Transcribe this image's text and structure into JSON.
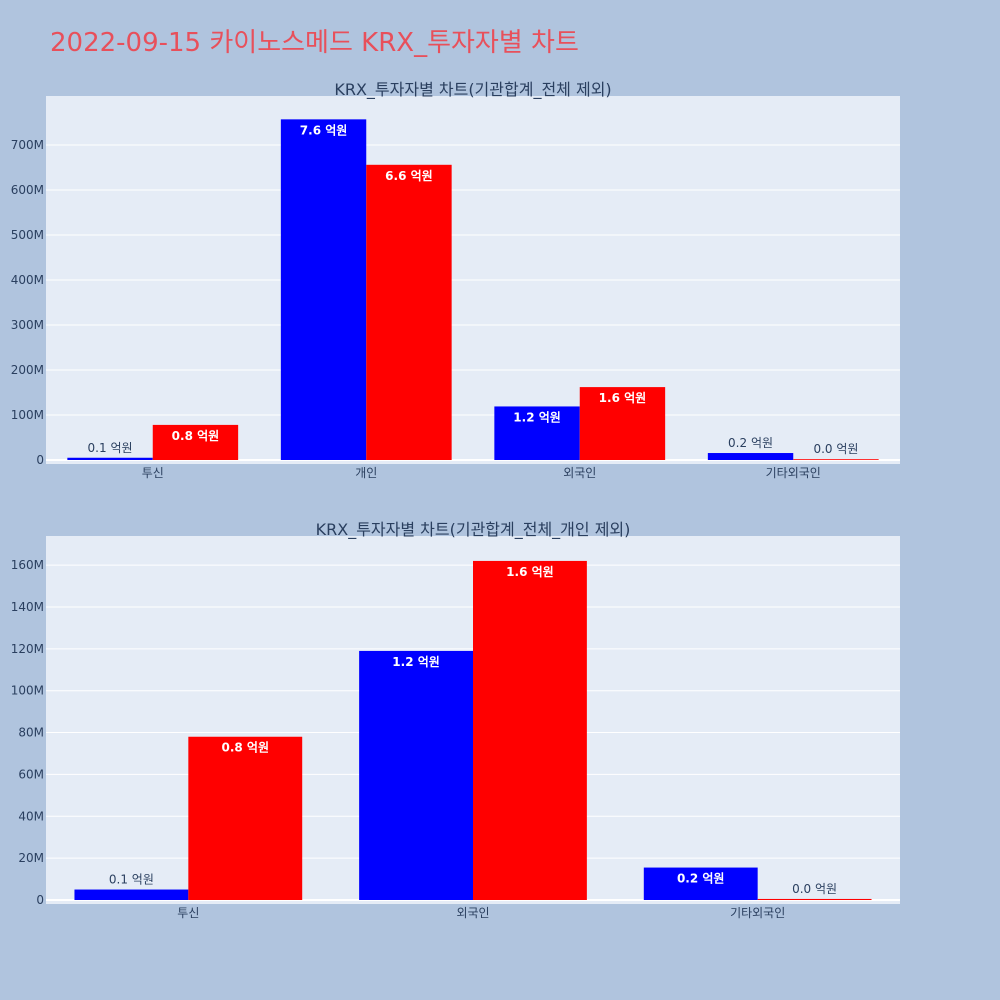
{
  "page": {
    "title": "2022-09-15 카이노스메드 KRX_투자자별 차트"
  },
  "colors": {
    "background": "#b0c4de",
    "plot_background": "#e5ecf6",
    "title": "#e8505b",
    "series_1": "#0000ff",
    "series_2": "#ff0000"
  },
  "chart_data": [
    {
      "type": "bar",
      "title": "KRX_투자자별 차트(기관합계_전체 제외)",
      "categories": [
        "투신",
        "개인",
        "외국인",
        "기타외국인"
      ],
      "series": [
        {
          "color": "#0000ff",
          "values": [
            5000000,
            757000000,
            119000000,
            15500000
          ],
          "labels": [
            "0.1 억원",
            "7.6 억원",
            "1.2 억원",
            "0.2 억원"
          ]
        },
        {
          "color": "#ff0000",
          "values": [
            78000000,
            656000000,
            162000000,
            500000
          ],
          "labels": [
            "0.8 억원",
            "6.6 억원",
            "1.6 억원",
            "0.0 억원"
          ]
        }
      ],
      "yticks": [
        "0",
        "100M",
        "200M",
        "300M",
        "400M",
        "500M",
        "600M",
        "700M"
      ],
      "ytick_values": [
        0,
        100000000,
        200000000,
        300000000,
        400000000,
        500000000,
        600000000,
        700000000
      ],
      "ylim": [
        0,
        800000000
      ],
      "grid": true
    },
    {
      "type": "bar",
      "title": "KRX_투자자별 차트(기관합계_전체_개인 제외)",
      "categories": [
        "투신",
        "외국인",
        "기타외국인"
      ],
      "series": [
        {
          "color": "#0000ff",
          "values": [
            5000000,
            119000000,
            15500000
          ],
          "labels": [
            "0.1 억원",
            "1.2 억원",
            "0.2 억원"
          ]
        },
        {
          "color": "#ff0000",
          "values": [
            78000000,
            162000000,
            500000
          ],
          "labels": [
            "0.8 억원",
            "1.6 억원",
            "0.0 억원"
          ]
        }
      ],
      "yticks": [
        "0",
        "20M",
        "40M",
        "60M",
        "80M",
        "100M",
        "120M",
        "140M",
        "160M"
      ],
      "ytick_values": [
        0,
        20000000,
        40000000,
        60000000,
        80000000,
        100000000,
        120000000,
        140000000,
        160000000
      ],
      "ylim": [
        0,
        172000000
      ],
      "grid": true
    }
  ]
}
